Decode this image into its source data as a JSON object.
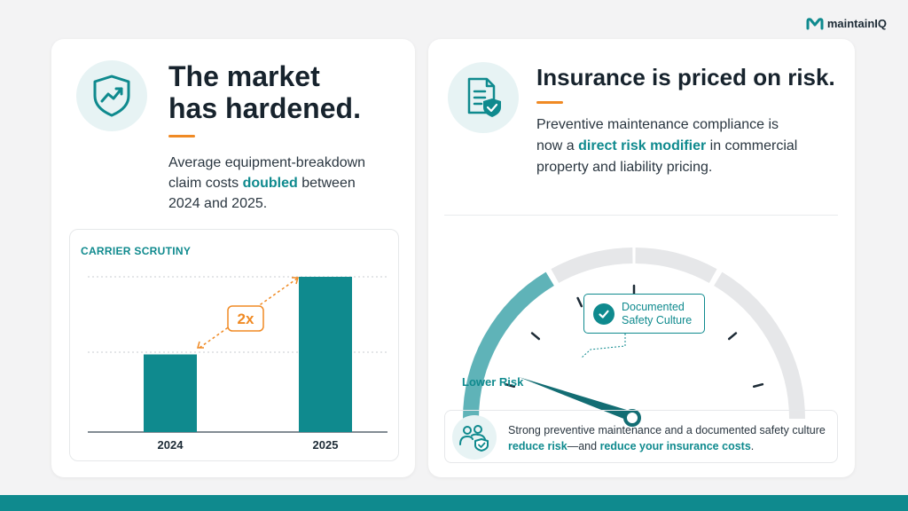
{
  "brand": {
    "name": "maintainIQ"
  },
  "left": {
    "headline_1": "The market",
    "headline_2": "has hardened.",
    "body_pre": "Average equipment-breakdown claim costs ",
    "body_highlight": "doubled",
    "body_post": " between 2024 and 2025.",
    "icon": "shield-trend-icon"
  },
  "chart": {
    "title": "CARRIER SCRUTINY",
    "multiplier_label": "2x"
  },
  "chart_data": {
    "type": "bar",
    "categories": [
      "2024",
      "2025"
    ],
    "values": [
      1,
      2
    ],
    "title": "CARRIER SCRUTINY",
    "annotations": [
      "2x"
    ],
    "bar_color": "#0f8a8e",
    "grid": true
  },
  "right": {
    "headline": "Insurance is priced on risk.",
    "body_pre": "Preventive maintenance compliance is now a ",
    "body_highlight": "direct risk modifier",
    "body_post": " in commercial property and liability pricing.",
    "icon": "document-shield-icon"
  },
  "gauge": {
    "badge_line_1": "Documented",
    "badge_line_2": "Safety Culture",
    "low_label": "Lower Risk",
    "level": 0.3
  },
  "footer": {
    "text_1": "Strong preventive maintenance and a documented safety culture ",
    "highlight_1": "reduce risk",
    "text_2": "—and ",
    "highlight_2": "reduce your insurance costs",
    "text_3": ".",
    "icon": "people-shield-icon"
  },
  "colors": {
    "accent": "#0f8a8e",
    "orange": "#f08a24",
    "text": "#17232d"
  }
}
